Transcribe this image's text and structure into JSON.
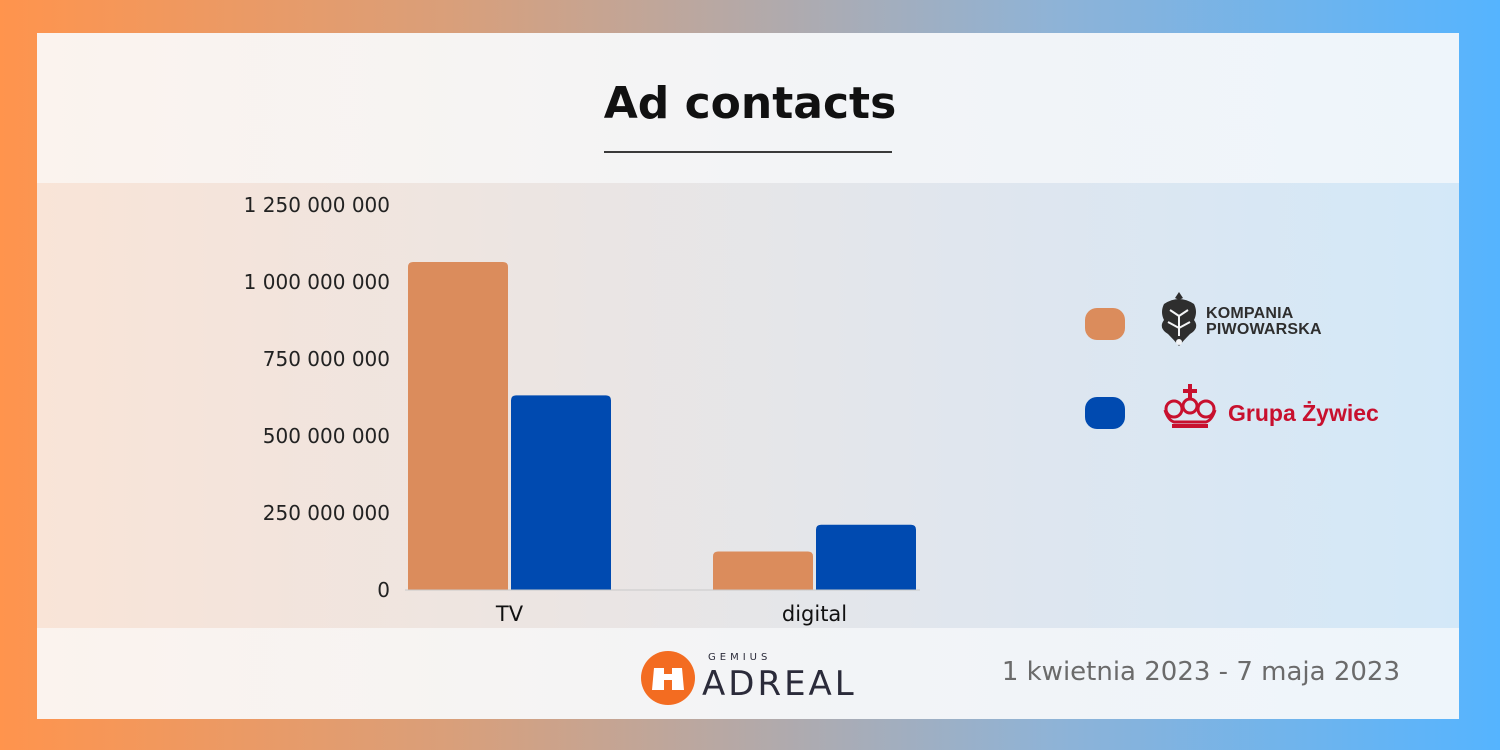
{
  "title": "Ad contacts",
  "legend": [
    {
      "name": "Kompania Piwowarska",
      "logo_lines": [
        "KOMPANIA",
        "PIWOWARSKA"
      ],
      "color": "#db8c5c"
    },
    {
      "name": "Grupa Żywiec",
      "logo_text": "Grupa Żywiec",
      "color": "#004ab0"
    }
  ],
  "chart_data": {
    "type": "bar",
    "title": "Ad contacts",
    "categories": [
      "TV",
      "digital"
    ],
    "series": [
      {
        "name": "Kompania Piwowarska",
        "color": "#db8c5c",
        "values": [
          1065000000,
          125000000
        ]
      },
      {
        "name": "Grupa Żywiec",
        "color": "#004ab0",
        "values": [
          632000000,
          212000000
        ]
      }
    ],
    "ylim": [
      0,
      1250000000
    ],
    "yticks": [
      0,
      250000000,
      500000000,
      750000000,
      1000000000,
      1250000000
    ],
    "ytick_labels": [
      "0",
      "250 000 000",
      "500 000 000",
      "750 000 000",
      "1 000 000 000",
      "1 250 000 000"
    ],
    "xlabel": "",
    "ylabel": "",
    "grid": false,
    "legend_position": "right"
  },
  "footer": {
    "brand_small": "GEMIUS",
    "brand": "ADREAL",
    "date_range": "1 kwietnia 2023 - 7 maja 2023"
  }
}
